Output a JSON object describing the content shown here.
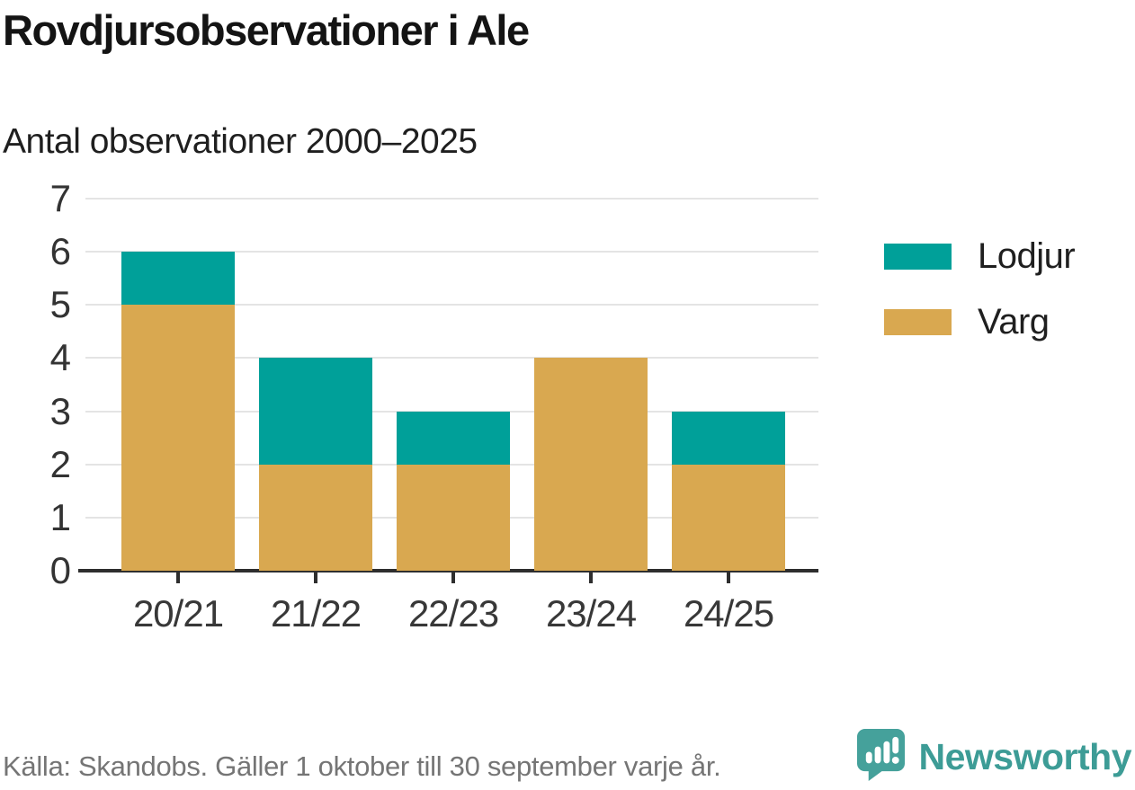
{
  "chart_data": {
    "type": "bar",
    "stacked": true,
    "title": "Rovdjursobservationer i Ale",
    "subtitle": "Antal observationer 2000–2025",
    "categories": [
      "20/21",
      "21/22",
      "22/23",
      "23/24",
      "24/25"
    ],
    "series": [
      {
        "name": "Varg",
        "color": "#d9a850",
        "values": [
          5,
          2,
          2,
          4,
          2
        ]
      },
      {
        "name": "Lodjur",
        "color": "#00a099",
        "values": [
          1,
          2,
          1,
          0,
          1
        ]
      }
    ],
    "totals": [
      6,
      4,
      3,
      4,
      3
    ],
    "legend": [
      {
        "label": "Lodjur",
        "color": "#00a099"
      },
      {
        "label": "Varg",
        "color": "#d9a850"
      }
    ],
    "legend_position": "right",
    "xlabel": "",
    "ylabel": "",
    "ylim": [
      0,
      7
    ],
    "yticks": [
      0,
      1,
      2,
      3,
      4,
      5,
      6,
      7
    ],
    "grid": true
  },
  "footer": {
    "source": "Källa: Skandobs. Gäller 1 oktober till 30 september varje år.",
    "brand": "Newsworthy"
  },
  "colors": {
    "lodjur_teal": "#00a099",
    "varg_gold": "#d9a850",
    "brand_teal": "#3d9c96",
    "logo_bubble": "#45a19b",
    "axis": "#2e2e2e",
    "grid": "#e4e4e4",
    "text_dark": "#1f1f1f",
    "text_muted": "#757575"
  }
}
